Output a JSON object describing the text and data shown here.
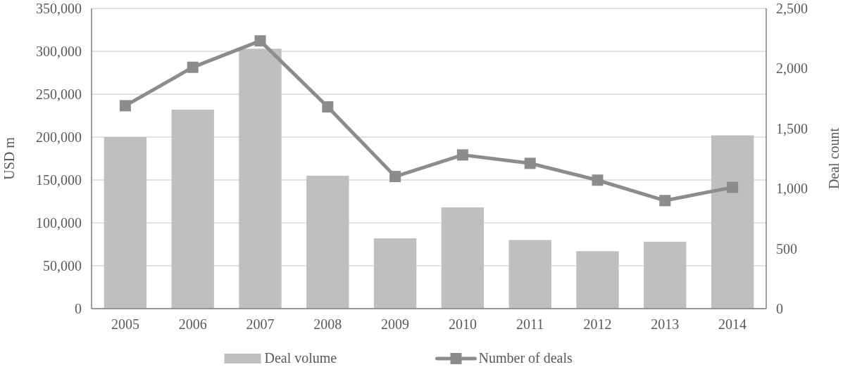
{
  "chart_data": {
    "type": "bar",
    "categories": [
      "2005",
      "2006",
      "2007",
      "2008",
      "2009",
      "2010",
      "2011",
      "2012",
      "2013",
      "2014"
    ],
    "series": [
      {
        "name": "Deal volume",
        "color": "#bfbfbf",
        "values": [
          200000,
          232000,
          303000,
          155000,
          82000,
          118000,
          80000,
          67000,
          78000,
          202000
        ]
      },
      {
        "name": "Number of deals",
        "type": "line",
        "axis": "y2",
        "color": "#8c8c8c",
        "marker": "square",
        "values": [
          1690,
          2010,
          2230,
          1680,
          1100,
          1280,
          1210,
          1070,
          900,
          1010
        ]
      }
    ],
    "ylabel": "USD m",
    "y2label": "Deal count",
    "ylim": [
      0,
      350000
    ],
    "yticks": [
      {
        "value": 0,
        "label": "0"
      },
      {
        "value": 50000,
        "label": "50,000"
      },
      {
        "value": 100000,
        "label": "100,000"
      },
      {
        "value": 150000,
        "label": "150,000"
      },
      {
        "value": 200000,
        "label": "200,000"
      },
      {
        "value": 250000,
        "label": "250,000"
      },
      {
        "value": 300000,
        "label": "300,000"
      },
      {
        "value": 350000,
        "label": "350,000"
      }
    ],
    "y2lim": [
      0,
      2500
    ],
    "y2ticks": [
      {
        "value": 0,
        "label": "0"
      },
      {
        "value": 500,
        "label": "500"
      },
      {
        "value": 1000,
        "label": "1,000"
      },
      {
        "value": 1500,
        "label": "1,500"
      },
      {
        "value": 2000,
        "label": "2,000"
      },
      {
        "value": 2500,
        "label": "2,500"
      }
    ],
    "grid": "y",
    "legend": "bottom"
  }
}
